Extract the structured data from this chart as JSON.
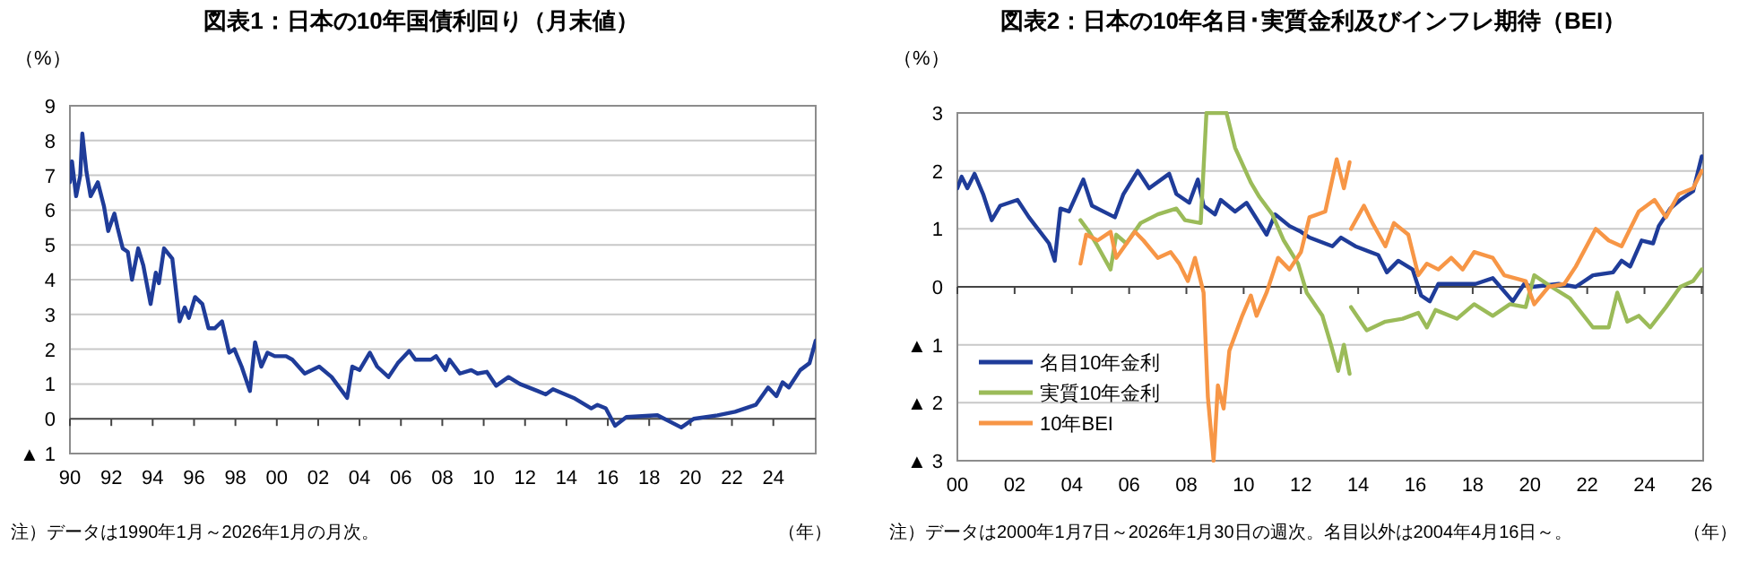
{
  "chart_data": [
    {
      "type": "line",
      "title": "図表1：日本の10年国債利回り（月末値）",
      "ylabel": "（%）",
      "xlabel": "（年）",
      "annotations": [
        "注）データは1990年1月～2026年1月の月次。"
      ],
      "xlim": [
        1990,
        2026.05
      ],
      "ylim": [
        -1,
        9
      ],
      "xticks": [
        {
          "value": 1990,
          "label": "90"
        },
        {
          "value": 1992,
          "label": "92"
        },
        {
          "value": 1994,
          "label": "94"
        },
        {
          "value": 1996,
          "label": "96"
        },
        {
          "value": 1998,
          "label": "98"
        },
        {
          "value": 2000,
          "label": "00"
        },
        {
          "value": 2002,
          "label": "02"
        },
        {
          "value": 2004,
          "label": "04"
        },
        {
          "value": 2006,
          "label": "06"
        },
        {
          "value": 2008,
          "label": "08"
        },
        {
          "value": 2010,
          "label": "10"
        },
        {
          "value": 2012,
          "label": "12"
        },
        {
          "value": 2014,
          "label": "14"
        },
        {
          "value": 2016,
          "label": "16"
        },
        {
          "value": 2018,
          "label": "18"
        },
        {
          "value": 2020,
          "label": "20"
        },
        {
          "value": 2022,
          "label": "22"
        },
        {
          "value": 2024,
          "label": "24"
        }
      ],
      "yticks": [
        {
          "value": -1,
          "label": "▲ 1"
        },
        0,
        1,
        2,
        3,
        4,
        5,
        6,
        7,
        8,
        9
      ],
      "grid": "y",
      "legend": false,
      "series": [
        {
          "color": "#1f3c99",
          "x": [
            1990.0,
            1990.1,
            1990.3,
            1990.5,
            1990.6,
            1990.8,
            1991.0,
            1991.35,
            1991.65,
            1991.85,
            1992.15,
            1992.3,
            1992.55,
            1992.8,
            1993.0,
            1993.3,
            1993.55,
            1993.9,
            1994.15,
            1994.3,
            1994.55,
            1994.95,
            1995.3,
            1995.55,
            1995.75,
            1996.05,
            1996.4,
            1996.7,
            1997.0,
            1997.35,
            1997.7,
            1997.95,
            1998.3,
            1998.7,
            1998.95,
            1999.25,
            1999.55,
            1999.9,
            2000.45,
            2000.75,
            2001.35,
            2002.05,
            2002.65,
            2003.4,
            2003.65,
            2004.0,
            2004.5,
            2004.85,
            2005.4,
            2005.85,
            2006.4,
            2006.7,
            2007.45,
            2007.7,
            2008.15,
            2008.35,
            2008.85,
            2009.4,
            2009.7,
            2010.15,
            2010.6,
            2011.2,
            2011.75,
            2012.6,
            2013.0,
            2013.35,
            2014.35,
            2015.2,
            2015.5,
            2015.9,
            2016.35,
            2016.9,
            2018.4,
            2019.55,
            2020.15,
            2021.3,
            2022.15,
            2023.15,
            2023.75,
            2024.15,
            2024.45,
            2024.75,
            2025.3,
            2025.75,
            2026.05
          ],
          "values": [
            6.8,
            7.4,
            6.4,
            7.0,
            8.2,
            7.1,
            6.4,
            6.8,
            6.1,
            5.4,
            5.9,
            5.5,
            4.9,
            4.8,
            4.0,
            4.9,
            4.4,
            3.3,
            4.2,
            3.9,
            4.9,
            4.6,
            2.8,
            3.2,
            2.9,
            3.5,
            3.3,
            2.6,
            2.6,
            2.8,
            1.9,
            2.0,
            1.5,
            0.8,
            2.2,
            1.5,
            1.9,
            1.8,
            1.8,
            1.7,
            1.3,
            1.5,
            1.2,
            0.6,
            1.5,
            1.4,
            1.9,
            1.5,
            1.2,
            1.6,
            1.95,
            1.7,
            1.7,
            1.8,
            1.4,
            1.7,
            1.3,
            1.4,
            1.3,
            1.35,
            0.95,
            1.2,
            1.0,
            0.8,
            0.7,
            0.85,
            0.6,
            0.3,
            0.4,
            0.3,
            -0.2,
            0.05,
            0.1,
            -0.25,
            0.0,
            0.1,
            0.2,
            0.4,
            0.9,
            0.65,
            1.05,
            0.9,
            1.4,
            1.6,
            2.25
          ]
        }
      ]
    },
    {
      "type": "line",
      "title": "図表2：日本の10年名目･実質金利及びインフレ期待（BEI）",
      "ylabel": "（%）",
      "xlabel": "（年）",
      "annotations": [
        "注）データは2000年1月7日～2026年1月30日の週次。名目以外は2004年4月16日～。"
      ],
      "xlim": [
        2000,
        2026.05
      ],
      "ylim": [
        -3,
        3
      ],
      "xticks": [
        {
          "value": 2000,
          "label": "00"
        },
        {
          "value": 2002,
          "label": "02"
        },
        {
          "value": 2004,
          "label": "04"
        },
        {
          "value": 2006,
          "label": "06"
        },
        {
          "value": 2008,
          "label": "08"
        },
        {
          "value": 2010,
          "label": "10"
        },
        {
          "value": 2012,
          "label": "12"
        },
        {
          "value": 2014,
          "label": "14"
        },
        {
          "value": 2016,
          "label": "16"
        },
        {
          "value": 2018,
          "label": "18"
        },
        {
          "value": 2020,
          "label": "20"
        },
        {
          "value": 2022,
          "label": "22"
        },
        {
          "value": 2024,
          "label": "24"
        },
        {
          "value": 2026,
          "label": "26"
        }
      ],
      "yticks": [
        {
          "value": -3,
          "label": "▲ 3"
        },
        {
          "value": -2,
          "label": "▲ 2"
        },
        {
          "value": -1,
          "label": "▲ 1"
        },
        0,
        1,
        2,
        3
      ],
      "grid": "y",
      "legend": "bottom left",
      "series": [
        {
          "name": "名目10年金利",
          "color": "#1f3c99",
          "x": [
            2000.0,
            2000.15,
            2000.35,
            2000.6,
            2000.9,
            2001.2,
            2001.5,
            2002.1,
            2002.5,
            2003.2,
            2003.4,
            2003.6,
            2003.9,
            2004.4,
            2004.7,
            2005.5,
            2005.8,
            2006.3,
            2006.7,
            2007.4,
            2007.65,
            2008.1,
            2008.4,
            2008.6,
            2009.0,
            2009.2,
            2009.7,
            2010.1,
            2010.8,
            2011.1,
            2011.6,
            2012.0,
            2012.3,
            2013.1,
            2013.4,
            2013.9,
            2014.7,
            2015.0,
            2015.4,
            2015.9,
            2016.2,
            2016.5,
            2016.8,
            2018.1,
            2018.7,
            2019.4,
            2019.8,
            2020.1,
            2021.0,
            2021.6,
            2022.2,
            2022.9,
            2023.2,
            2023.5,
            2023.9,
            2024.3,
            2024.5,
            2024.9,
            2025.25,
            2025.7,
            2026.0
          ],
          "values": [
            1.7,
            1.9,
            1.7,
            1.95,
            1.6,
            1.15,
            1.4,
            1.5,
            1.2,
            0.75,
            0.45,
            1.35,
            1.3,
            1.85,
            1.4,
            1.2,
            1.6,
            2.0,
            1.7,
            1.95,
            1.6,
            1.45,
            1.85,
            1.4,
            1.25,
            1.5,
            1.3,
            1.45,
            0.9,
            1.25,
            1.05,
            0.95,
            0.85,
            0.7,
            0.85,
            0.7,
            0.55,
            0.25,
            0.45,
            0.3,
            -0.15,
            -0.25,
            0.05,
            0.05,
            0.15,
            -0.25,
            0.05,
            0.0,
            0.05,
            0.0,
            0.2,
            0.25,
            0.45,
            0.35,
            0.8,
            0.75,
            1.05,
            1.35,
            1.5,
            1.65,
            2.25
          ]
        },
        {
          "name": "実質10年金利",
          "color": "#9bbb59",
          "x": [
            2004.3,
            2004.6,
            2004.9,
            2005.35,
            2005.55,
            2005.9,
            2006.4,
            2007.0,
            2007.65,
            2007.95,
            2008.5,
            2008.7,
            2009.4,
            2009.7,
            2010.25,
            2010.55,
            2011.0,
            2011.4,
            2011.9,
            2012.2,
            2012.75,
            2013.05,
            2013.3,
            2013.5,
            2013.7,
            2013.72,
            2013.75,
            2014.3,
            2014.95,
            2015.55,
            2016.1,
            2016.4,
            2016.7,
            2017.45,
            2018.05,
            2018.7,
            2019.3,
            2019.85,
            2020.15,
            2020.75,
            2021.4,
            2022.2,
            2022.75,
            2023.05,
            2023.4,
            2023.8,
            2024.2,
            2024.75,
            2025.25,
            2025.7,
            2026.0
          ],
          "values": [
            1.15,
            0.95,
            0.7,
            0.3,
            0.9,
            0.75,
            1.1,
            1.25,
            1.35,
            1.15,
            1.1,
            3.0,
            3.0,
            2.4,
            1.8,
            1.55,
            1.25,
            0.8,
            0.4,
            -0.1,
            -0.5,
            -1.0,
            -1.45,
            -1.0,
            -1.5,
            null,
            -0.35,
            -0.75,
            -0.6,
            -0.55,
            -0.45,
            -0.7,
            -0.4,
            -0.55,
            -0.3,
            -0.5,
            -0.3,
            -0.35,
            0.2,
            0.0,
            -0.2,
            -0.7,
            -0.7,
            -0.1,
            -0.6,
            -0.5,
            -0.7,
            -0.35,
            0.0,
            0.1,
            0.3
          ]
        },
        {
          "name": "10年BEI",
          "color": "#f79646",
          "x": [
            2004.3,
            2004.5,
            2004.9,
            2005.35,
            2005.55,
            2006.2,
            2006.5,
            2007.0,
            2007.45,
            2007.75,
            2008.05,
            2008.3,
            2008.6,
            2008.75,
            2008.95,
            2009.1,
            2009.3,
            2009.5,
            2009.95,
            2010.25,
            2010.45,
            2010.8,
            2011.2,
            2011.6,
            2012.0,
            2012.3,
            2012.85,
            2013.25,
            2013.5,
            2013.7,
            2013.72,
            2013.75,
            2014.2,
            2014.5,
            2014.95,
            2015.25,
            2015.75,
            2016.1,
            2016.4,
            2016.8,
            2017.25,
            2017.65,
            2018.05,
            2018.7,
            2019.1,
            2019.85,
            2020.15,
            2020.65,
            2021.2,
            2021.6,
            2022.3,
            2022.75,
            2023.2,
            2023.5,
            2023.8,
            2024.35,
            2024.75,
            2025.2,
            2025.7,
            2026.0
          ],
          "values": [
            0.4,
            0.9,
            0.8,
            0.95,
            0.5,
            0.95,
            0.8,
            0.5,
            0.6,
            0.4,
            0.1,
            0.5,
            -0.1,
            -1.9,
            -3.0,
            -1.7,
            -2.1,
            -1.1,
            -0.5,
            -0.15,
            -0.5,
            -0.1,
            0.5,
            0.3,
            0.6,
            1.2,
            1.3,
            2.2,
            1.7,
            2.15,
            null,
            1.0,
            1.4,
            1.1,
            0.7,
            1.1,
            0.9,
            0.2,
            0.4,
            0.3,
            0.5,
            0.3,
            0.6,
            0.5,
            0.2,
            0.1,
            -0.3,
            0.0,
            0.05,
            0.35,
            1.0,
            0.8,
            0.7,
            1.0,
            1.3,
            1.5,
            1.2,
            1.6,
            1.7,
            2.0
          ]
        }
      ]
    }
  ]
}
